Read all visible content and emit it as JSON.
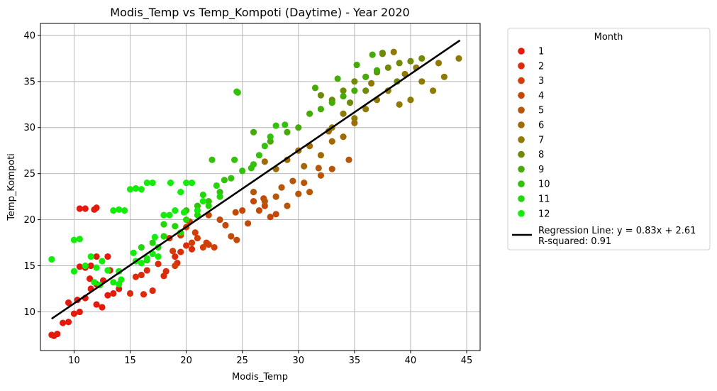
{
  "chart_data": {
    "type": "scatter",
    "title": "Modis_Temp vs Temp_Kompoti (Daytime) - Year 2020",
    "xlabel": "Modis_Temp",
    "ylabel": "Temp_Kompoti",
    "xlim": [
      7,
      46.2
    ],
    "ylim": [
      5.8,
      41.3
    ],
    "xticks": [
      10,
      15,
      20,
      25,
      30,
      35,
      40,
      45
    ],
    "yticks": [
      10,
      15,
      20,
      25,
      30,
      35,
      40
    ],
    "xtick_labels": [
      "10",
      "15",
      "20",
      "25",
      "30",
      "35",
      "40",
      "45"
    ],
    "ytick_labels": [
      "10",
      "15",
      "20",
      "25",
      "30",
      "35",
      "40"
    ],
    "grid": true,
    "legend": {
      "title": "Month",
      "placement": "outside-right",
      "regression_line1": "Regression Line: y = 0.83x + 2.61",
      "regression_line2": "R-squared: 0.91"
    },
    "regression": {
      "slope": 0.83,
      "intercept": 2.61,
      "x_range": [
        8,
        44.4
      ],
      "color": "#000000"
    },
    "series": [
      {
        "name": "1",
        "color": "#e31a0c",
        "points": [
          [
            8,
            7.5
          ],
          [
            8.2,
            7.4
          ],
          [
            8.5,
            7.6
          ],
          [
            9,
            8.8
          ],
          [
            9.5,
            8.9
          ],
          [
            10,
            9.8
          ],
          [
            10.5,
            10
          ],
          [
            11,
            11.5
          ],
          [
            11.5,
            12.5
          ],
          [
            12,
            13
          ],
          [
            12,
            10.8
          ],
          [
            12.5,
            10.5
          ],
          [
            13,
            11.8
          ],
          [
            13.5,
            12
          ],
          [
            10.5,
            14.9
          ],
          [
            11,
            14.8
          ],
          [
            11.5,
            15
          ],
          [
            12,
            16
          ],
          [
            13,
            16
          ],
          [
            10.5,
            21.2
          ],
          [
            11,
            21.2
          ],
          [
            11.8,
            21.1
          ],
          [
            12,
            21.3
          ],
          [
            14,
            12.5
          ],
          [
            9.5,
            11
          ],
          [
            10.3,
            11.3
          ],
          [
            12.6,
            13.4
          ],
          [
            13.2,
            14.5
          ],
          [
            11.4,
            13.6
          ]
        ]
      },
      {
        "name": "2",
        "color": "#dc2b0a",
        "points": [
          [
            15,
            12
          ],
          [
            15.5,
            13.8
          ],
          [
            16,
            14
          ],
          [
            16.5,
            14.5
          ],
          [
            17,
            12.3
          ],
          [
            18,
            13.9
          ],
          [
            19,
            16
          ],
          [
            19.5,
            16.5
          ],
          [
            20,
            17.2
          ],
          [
            18.5,
            18
          ],
          [
            17.5,
            15.2
          ],
          [
            16.2,
            11.9
          ],
          [
            18.2,
            14.4
          ],
          [
            19.2,
            15.3
          ],
          [
            20.5,
            16.8
          ]
        ]
      },
      {
        "name": "3",
        "color": "#d33d08",
        "points": [
          [
            19.5,
            18.3
          ],
          [
            20,
            19.2
          ],
          [
            20.5,
            17.5
          ],
          [
            21,
            18
          ],
          [
            21.5,
            17
          ],
          [
            22,
            17.3
          ],
          [
            22.5,
            17
          ],
          [
            19,
            15
          ],
          [
            20.3,
            19.8
          ],
          [
            21.8,
            17.5
          ],
          [
            18.8,
            16.6
          ],
          [
            20.8,
            18.6
          ]
        ]
      },
      {
        "name": "4",
        "color": "#c44907",
        "points": [
          [
            22,
            20.5
          ],
          [
            23,
            20
          ],
          [
            24,
            18.2
          ],
          [
            24.5,
            17.8
          ],
          [
            25,
            21
          ],
          [
            26,
            22
          ],
          [
            27,
            21.5
          ],
          [
            27.5,
            20.3
          ],
          [
            25.5,
            19.6
          ],
          [
            26.5,
            21
          ],
          [
            23.5,
            19.4
          ],
          [
            28,
            20.6
          ],
          [
            24.4,
            20.8
          ],
          [
            26.9,
            22.3
          ]
        ]
      },
      {
        "name": "5",
        "color": "#b65608",
        "points": [
          [
            26,
            23
          ],
          [
            27,
            22
          ],
          [
            28,
            22.5
          ],
          [
            29,
            21.5
          ],
          [
            30,
            22.8
          ],
          [
            28.5,
            23.5
          ],
          [
            30.5,
            24
          ],
          [
            31,
            23
          ],
          [
            32,
            24.8
          ],
          [
            33,
            25.5
          ],
          [
            34.5,
            26.5
          ],
          [
            29.5,
            24.2
          ],
          [
            31.8,
            25.6
          ]
        ]
      },
      {
        "name": "6",
        "color": "#a06a06",
        "points": [
          [
            27,
            26.3
          ],
          [
            28,
            25.5
          ],
          [
            29,
            26.5
          ],
          [
            30,
            27.5
          ],
          [
            31,
            28
          ],
          [
            32,
            27
          ],
          [
            33,
            28.5
          ],
          [
            34,
            29
          ],
          [
            35,
            30.5
          ],
          [
            30.5,
            25.8
          ],
          [
            32.7,
            29.6
          ]
        ]
      },
      {
        "name": "7",
        "color": "#8e7a05",
        "points": [
          [
            33,
            30
          ],
          [
            34,
            31.5
          ],
          [
            35,
            31
          ],
          [
            36,
            32
          ],
          [
            37,
            33
          ],
          [
            38,
            34
          ],
          [
            39,
            32.5
          ],
          [
            40,
            33
          ],
          [
            41,
            35
          ],
          [
            42,
            34
          ],
          [
            43,
            35.5
          ],
          [
            44.3,
            37.5
          ],
          [
            38.5,
            38.2
          ],
          [
            37.5,
            38
          ],
          [
            40.5,
            36.5
          ],
          [
            36.5,
            34.8
          ],
          [
            42.5,
            37
          ],
          [
            39.5,
            35.8
          ]
        ]
      },
      {
        "name": "8",
        "color": "#6e8a06",
        "points": [
          [
            32,
            33.5
          ],
          [
            33,
            33
          ],
          [
            34,
            34
          ],
          [
            35,
            35
          ],
          [
            36,
            35.5
          ],
          [
            37,
            36
          ],
          [
            38,
            36.5
          ],
          [
            39,
            37
          ],
          [
            40,
            37.2
          ],
          [
            41,
            37.5
          ],
          [
            37.5,
            38.1
          ],
          [
            36,
            34
          ],
          [
            38.8,
            35
          ],
          [
            34.6,
            32.7
          ]
        ]
      },
      {
        "name": "9",
        "color": "#46aa08",
        "points": [
          [
            29,
            29.5
          ],
          [
            30,
            30
          ],
          [
            31,
            31.5
          ],
          [
            32,
            32
          ],
          [
            33,
            32.7
          ],
          [
            34,
            33.4
          ],
          [
            35,
            34
          ],
          [
            36,
            35.5
          ],
          [
            37,
            36.2
          ],
          [
            26,
            29.5
          ],
          [
            27.5,
            28.5
          ],
          [
            31.5,
            34.3
          ],
          [
            33.5,
            35.3
          ],
          [
            36.6,
            37.9
          ],
          [
            35.2,
            36.8
          ]
        ]
      },
      {
        "name": "10",
        "color": "#33c20a",
        "points": [
          [
            20,
            21
          ],
          [
            21,
            21.5
          ],
          [
            22,
            22
          ],
          [
            23,
            23
          ],
          [
            24,
            24.5
          ],
          [
            25,
            25.3
          ],
          [
            26,
            26
          ],
          [
            26.5,
            27
          ],
          [
            27,
            28
          ],
          [
            27.5,
            29
          ],
          [
            28,
            30.2
          ],
          [
            24.5,
            33.9
          ],
          [
            24.6,
            33.8
          ],
          [
            22.3,
            26.5
          ],
          [
            24.3,
            26.5
          ],
          [
            23.4,
            24.3
          ],
          [
            28.8,
            30.3
          ],
          [
            25.8,
            25.6
          ]
        ]
      },
      {
        "name": "11",
        "color": "#22d60a",
        "points": [
          [
            16,
            17
          ],
          [
            17,
            17.5
          ],
          [
            18,
            18.2
          ],
          [
            19,
            19.3
          ],
          [
            20,
            20
          ],
          [
            21,
            20.5
          ],
          [
            22,
            21.5
          ],
          [
            23,
            22.5
          ],
          [
            18,
            19.5
          ],
          [
            17.5,
            17
          ],
          [
            16.5,
            15.6
          ],
          [
            19.5,
            18.6
          ],
          [
            21.5,
            22.7
          ],
          [
            22.7,
            23.7
          ]
        ]
      },
      {
        "name": "12",
        "color": "#14ed0c",
        "points": [
          [
            8,
            15.7
          ],
          [
            10,
            14.4
          ],
          [
            10,
            17.8
          ],
          [
            10.5,
            17.9
          ],
          [
            11,
            15
          ],
          [
            11.5,
            16
          ],
          [
            12,
            14.8
          ],
          [
            12.5,
            15.5
          ],
          [
            13,
            14.5
          ],
          [
            13.5,
            13.2
          ],
          [
            14,
            13
          ],
          [
            14.2,
            13.5
          ],
          [
            13.5,
            21
          ],
          [
            14,
            21.1
          ],
          [
            14.5,
            21
          ],
          [
            15,
            23.3
          ],
          [
            15.5,
            23.4
          ],
          [
            16,
            23.3
          ],
          [
            16.5,
            24
          ],
          [
            17,
            24
          ],
          [
            15.5,
            15.5
          ],
          [
            16,
            15.3
          ],
          [
            16.5,
            15.8
          ],
          [
            17,
            16.3
          ],
          [
            17.5,
            16
          ],
          [
            18,
            20.5
          ],
          [
            18.5,
            20.5
          ],
          [
            19,
            21
          ],
          [
            19.5,
            23
          ],
          [
            20,
            24
          ],
          [
            20.5,
            24
          ],
          [
            21,
            21
          ],
          [
            21.5,
            22
          ],
          [
            18.6,
            24
          ],
          [
            14,
            14.4
          ],
          [
            11.8,
            13.2
          ],
          [
            12.3,
            12.9
          ],
          [
            15.3,
            16.4
          ],
          [
            17.2,
            18.1
          ],
          [
            19.8,
            20.8
          ]
        ]
      }
    ]
  }
}
